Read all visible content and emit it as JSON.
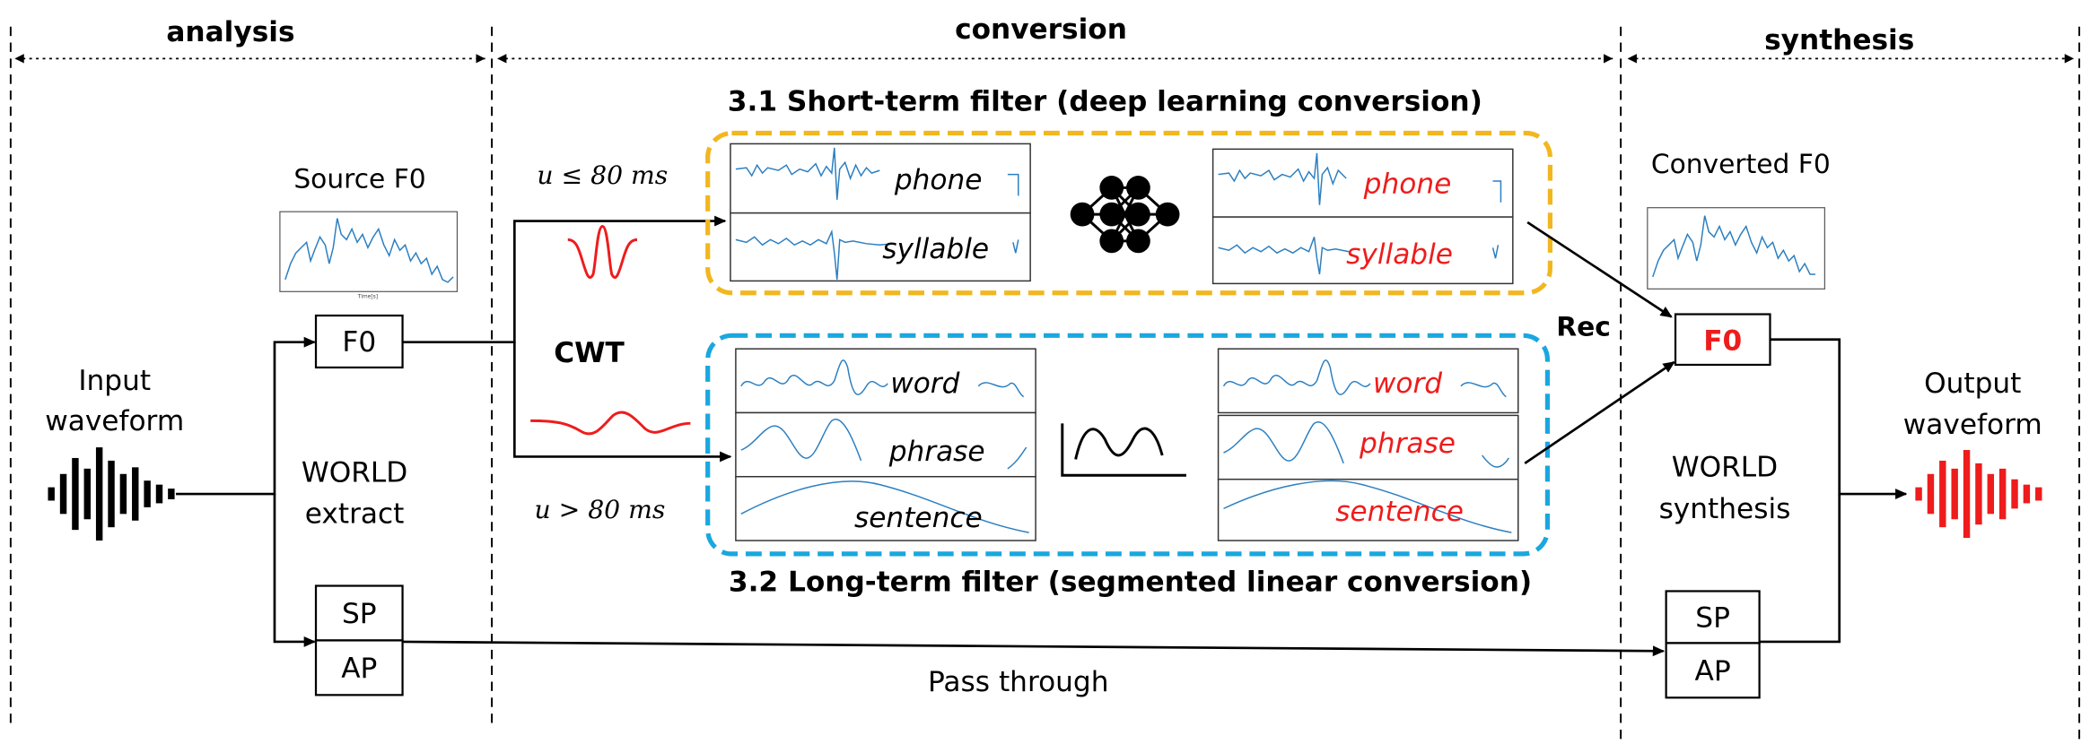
{
  "sections": {
    "analysis": "analysis",
    "conversion": "conversion",
    "synthesis": "synthesis"
  },
  "filters": {
    "short_term_title": "3.1 Short-term filter (deep learning conversion)",
    "long_term_title": "3.2 Long-term filter (segmented linear conversion)"
  },
  "labels": {
    "source_f0": "Source F0",
    "converted_f0": "Converted F0",
    "input_waveform_1": "Input",
    "input_waveform_2": "waveform",
    "output_waveform_1": "Output",
    "output_waveform_2": "waveform",
    "world_extract_1": "WORLD",
    "world_extract_2": "extract",
    "world_synthesis_1": "WORLD",
    "world_synthesis_2": "synthesis",
    "pass_through": "Pass through",
    "cwt": "CWT",
    "rec": "Rec",
    "u_short": "u ≤ 80 ms",
    "u_long": "u > 80 ms"
  },
  "boxes": {
    "f0_source": "F0",
    "sp_source": "SP",
    "ap_source": "AP",
    "f0_converted": "F0",
    "sp_converted": "SP",
    "ap_converted": "AP"
  },
  "scales": {
    "phone": "phone",
    "syllable": "syllable",
    "word": "word",
    "phrase": "phrase",
    "sentence": "sentence",
    "phone_conv": "phone",
    "syllable_conv": "syllable",
    "word_conv": "word",
    "phrase_conv": "phrase",
    "sentence_conv": "sentence"
  },
  "colors": {
    "converted": "#ee1c1c",
    "short_term_border": "#f2b71f",
    "long_term_border": "#1aa7e0",
    "signal": "#2b7fc1",
    "ink": "#000000"
  }
}
